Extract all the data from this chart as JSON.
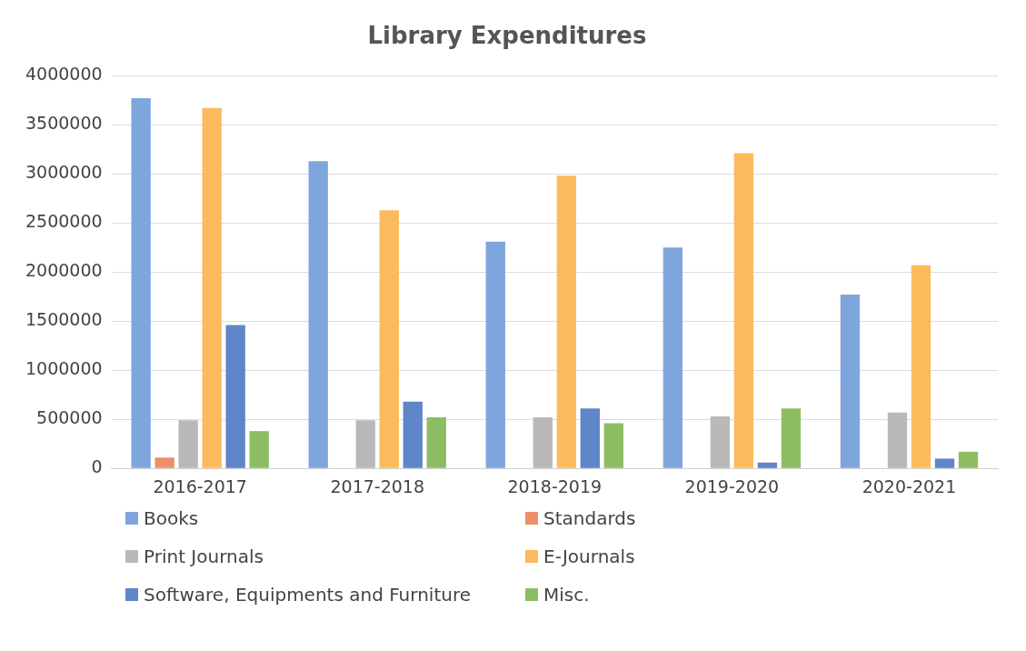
{
  "chart_data": {
    "type": "bar",
    "title": "Library Expenditures",
    "categories": [
      "2016-2017",
      "2017-2018",
      "2018-2019",
      "2019-2020",
      "2020-2021"
    ],
    "series": [
      {
        "name": "Books",
        "color": "#7ea6dc",
        "values": [
          3770000,
          3130000,
          2310000,
          2250000,
          1770000
        ]
      },
      {
        "name": "Standards",
        "color": "#ee8f6a",
        "values": [
          110000,
          0,
          0,
          0,
          0
        ]
      },
      {
        "name": "Print Journals",
        "color": "#b9b9b9",
        "values": [
          490000,
          490000,
          520000,
          530000,
          570000
        ]
      },
      {
        "name": "E-Journals",
        "color": "#fbbb5c",
        "values": [
          3670000,
          2630000,
          2980000,
          3210000,
          2070000
        ]
      },
      {
        "name": "Software, Equipments and Furniture",
        "color": "#5f86c9",
        "values": [
          1460000,
          680000,
          610000,
          60000,
          100000
        ]
      },
      {
        "name": "Misc.",
        "color": "#8dbd63",
        "values": [
          380000,
          520000,
          460000,
          610000,
          170000
        ]
      }
    ],
    "ylim": [
      0,
      4000000
    ],
    "yticks": [
      0,
      500000,
      1000000,
      1500000,
      2000000,
      2500000,
      3000000,
      3500000,
      4000000
    ],
    "grid": "y",
    "legend": "bottom"
  }
}
